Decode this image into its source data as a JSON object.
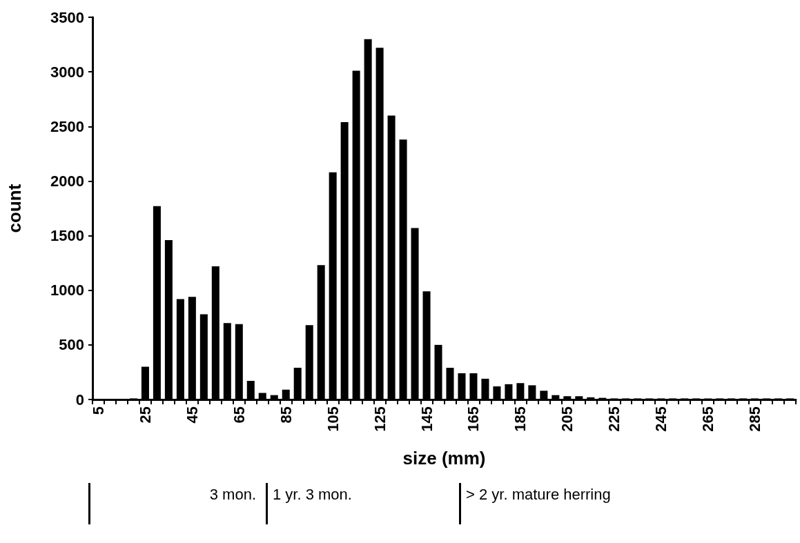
{
  "chart_data": {
    "type": "bar",
    "xlabel": "size (mm)",
    "ylabel": "count",
    "categories": [
      "5",
      null,
      null,
      null,
      "25",
      null,
      null,
      null,
      "45",
      null,
      null,
      null,
      "65",
      null,
      null,
      null,
      "85",
      null,
      null,
      null,
      "105",
      null,
      null,
      null,
      "125",
      null,
      null,
      null,
      "145",
      null,
      null,
      null,
      "165",
      null,
      null,
      null,
      "185",
      null,
      null,
      null,
      "205",
      null,
      null,
      null,
      "225",
      null,
      null,
      null,
      "245",
      null,
      null,
      null,
      "265",
      null,
      null,
      null,
      "285",
      null,
      null,
      null
    ],
    "values": [
      0,
      0,
      0,
      10,
      300,
      1770,
      1460,
      920,
      940,
      780,
      1220,
      700,
      690,
      170,
      60,
      40,
      90,
      290,
      680,
      1230,
      2080,
      2540,
      3010,
      3300,
      3220,
      2600,
      2380,
      1570,
      990,
      500,
      290,
      240,
      240,
      190,
      120,
      140,
      150,
      130,
      80,
      40,
      30,
      30,
      20,
      15,
      10,
      10,
      10,
      10,
      10,
      10,
      10,
      10,
      10,
      10,
      10,
      10,
      10,
      10,
      10,
      10
    ],
    "color": "#000000",
    "ylim": [
      0,
      3500
    ],
    "yticks": [
      0,
      500,
      1000,
      1500,
      2000,
      2500,
      3000,
      3500
    ],
    "grid": false,
    "annotations": [
      "3 mon.",
      "1 yr. 3 mon.",
      "> 2 yr. mature herring"
    ]
  }
}
